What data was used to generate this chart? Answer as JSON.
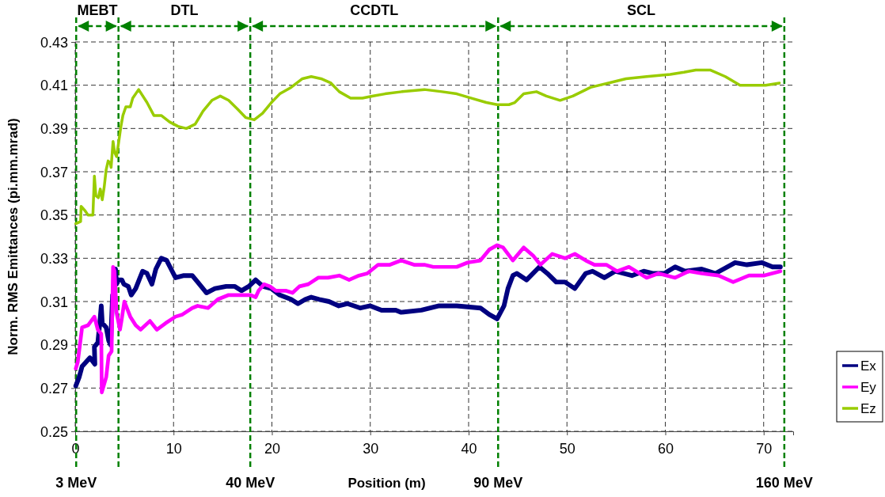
{
  "chart_data": {
    "type": "line",
    "xlabel": "Position (m)",
    "ylabel": "Norm. RMS Emittances (pi.mm.mrad)",
    "xlim": [
      0,
      73
    ],
    "xticks": [
      0,
      10,
      20,
      30,
      40,
      50,
      60,
      70
    ],
    "ylim": [
      0.25,
      0.43
    ],
    "yticks": [
      {
        "value": 0.25,
        "label": "0.25"
      },
      {
        "value": 0.27,
        "label": "0.27"
      },
      {
        "value": 0.29,
        "label": "0.29"
      },
      {
        "value": 0.31,
        "label": "0.31"
      },
      {
        "value": 0.33,
        "label": "0.33"
      },
      {
        "value": 0.35,
        "label": "0.35"
      },
      {
        "value": 0.37,
        "label": "0.37"
      },
      {
        "value": 0.39,
        "label": "0.39"
      },
      {
        "value": 0.41,
        "label": "0.41"
      },
      {
        "value": 0.43,
        "label": "0.43"
      }
    ],
    "grid": true,
    "legend": "right",
    "line_style": "solid",
    "marker": "none",
    "series": [
      {
        "name": "Ex",
        "color": "#000080",
        "x": [
          0.06,
          0.4,
          0.7,
          1.1,
          1.5,
          2.0,
          1.95,
          2.3,
          2.5,
          2.65,
          2.75,
          3.15,
          3.4,
          3.6,
          3.8,
          3.95,
          4.1,
          4.2,
          4.4,
          4.75,
          4.95,
          5.4,
          5.7,
          6.15,
          6.5,
          6.85,
          7.3,
          7.8,
          8.2,
          8.75,
          9.3,
          9.75,
          10.2,
          11.05,
          11.9,
          12.45,
          13.35,
          14.2,
          15.35,
          16.2,
          16.9,
          17.65,
          18.35,
          19.1,
          19.95,
          20.8,
          21.95,
          22.65,
          23.4,
          24.0,
          24.8,
          25.8,
          26.8,
          27.7,
          29.0,
          30.0,
          31.15,
          32.6,
          33.15,
          35.2,
          37.0,
          38.8,
          41.2,
          42.1,
          42.9,
          43.6,
          44.0,
          44.5,
          44.9,
          45.9,
          47.2,
          48.0,
          48.9,
          49.8,
          50.8,
          51.9,
          52.6,
          53.8,
          54.9,
          56.6,
          57.8,
          58.7,
          59.9,
          61.0,
          62.0,
          63.7,
          65.1,
          67.1,
          68.3,
          69.8,
          70.9,
          71.7
        ],
        "values": [
          0.271,
          0.275,
          0.28,
          0.282,
          0.284,
          0.281,
          0.289,
          0.291,
          0.3,
          0.308,
          0.3,
          0.298,
          0.292,
          0.29,
          0.313,
          0.314,
          0.325,
          0.318,
          0.32,
          0.32,
          0.318,
          0.317,
          0.313,
          0.316,
          0.32,
          0.324,
          0.323,
          0.318,
          0.325,
          0.33,
          0.329,
          0.325,
          0.321,
          0.322,
          0.322,
          0.319,
          0.314,
          0.316,
          0.317,
          0.317,
          0.315,
          0.317,
          0.32,
          0.317,
          0.316,
          0.313,
          0.311,
          0.309,
          0.311,
          0.312,
          0.311,
          0.31,
          0.308,
          0.309,
          0.307,
          0.308,
          0.306,
          0.306,
          0.305,
          0.306,
          0.308,
          0.308,
          0.307,
          0.304,
          0.302,
          0.308,
          0.316,
          0.322,
          0.323,
          0.32,
          0.326,
          0.323,
          0.319,
          0.319,
          0.316,
          0.323,
          0.324,
          0.321,
          0.324,
          0.322,
          0.324,
          0.323,
          0.323,
          0.326,
          0.324,
          0.325,
          0.323,
          0.328,
          0.327,
          0.328,
          0.326,
          0.326
        ]
      },
      {
        "name": "Ey",
        "color": "#ff00ff",
        "x": [
          0.06,
          0.26,
          0.7,
          1.3,
          1.95,
          2.3,
          2.65,
          2.7,
          3.15,
          3.4,
          3.7,
          3.85,
          4.0,
          4.2,
          4.55,
          4.7,
          5.0,
          5.6,
          6.15,
          6.65,
          7.6,
          8.3,
          9.2,
          10.2,
          10.9,
          11.9,
          12.45,
          13.5,
          14.5,
          15.6,
          16.8,
          17.8,
          18.35,
          18.65,
          19.2,
          19.8,
          20.4,
          21.4,
          22.1,
          22.8,
          23.7,
          24.7,
          25.7,
          26.85,
          27.85,
          28.85,
          29.7,
          30.8,
          32.0,
          33.15,
          34.45,
          35.5,
          36.4,
          38.8,
          39.9,
          41.2,
          42.1,
          42.9,
          43.5,
          44.5,
          45.6,
          46.6,
          47.3,
          48.5,
          49.8,
          50.8,
          51.9,
          52.8,
          54.0,
          55.1,
          56.3,
          58.1,
          59.3,
          61.0,
          62.4,
          63.7,
          65.4,
          66.9,
          68.5,
          70.0,
          71.7
        ],
        "values": [
          0.279,
          0.282,
          0.298,
          0.299,
          0.303,
          0.297,
          0.295,
          0.268,
          0.275,
          0.285,
          0.287,
          0.326,
          0.324,
          0.305,
          0.297,
          0.301,
          0.31,
          0.303,
          0.299,
          0.297,
          0.301,
          0.297,
          0.3,
          0.303,
          0.304,
          0.307,
          0.308,
          0.307,
          0.311,
          0.313,
          0.313,
          0.313,
          0.312,
          0.315,
          0.318,
          0.317,
          0.315,
          0.315,
          0.314,
          0.317,
          0.318,
          0.321,
          0.321,
          0.322,
          0.32,
          0.322,
          0.323,
          0.327,
          0.327,
          0.329,
          0.327,
          0.327,
          0.326,
          0.326,
          0.328,
          0.329,
          0.334,
          0.336,
          0.335,
          0.329,
          0.335,
          0.331,
          0.327,
          0.332,
          0.33,
          0.332,
          0.329,
          0.327,
          0.327,
          0.324,
          0.326,
          0.321,
          0.323,
          0.321,
          0.324,
          0.323,
          0.322,
          0.319,
          0.322,
          0.322,
          0.324
        ]
      },
      {
        "name": "Ez",
        "color": "#99cc00",
        "x": [
          0.06,
          0.55,
          0.6,
          1.0,
          1.3,
          1.8,
          1.95,
          2.1,
          2.35,
          2.55,
          2.75,
          2.95,
          3.15,
          3.35,
          3.55,
          3.65,
          3.85,
          4.0,
          4.2,
          4.4,
          4.65,
          4.85,
          5.15,
          5.6,
          5.85,
          6.45,
          7.3,
          8.0,
          8.75,
          9.6,
          10.45,
          11.3,
          12.2,
          13.0,
          13.9,
          14.75,
          15.6,
          16.5,
          17.35,
          18.2,
          19.05,
          19.95,
          20.8,
          21.95,
          23.1,
          24.0,
          25.0,
          26.0,
          26.85,
          28.0,
          29.2,
          30.3,
          31.5,
          33.2,
          35.5,
          37.3,
          38.8,
          40.3,
          41.8,
          42.9,
          44.1,
          44.7,
          45.6,
          46.9,
          47.9,
          49.3,
          50.6,
          52.4,
          54.2,
          56.0,
          58.1,
          60.5,
          61.9,
          63.1,
          64.6,
          66.1,
          67.6,
          69.0,
          70.2,
          71.6
        ],
        "values": [
          0.346,
          0.347,
          0.354,
          0.352,
          0.35,
          0.35,
          0.368,
          0.359,
          0.358,
          0.362,
          0.357,
          0.363,
          0.371,
          0.375,
          0.374,
          0.372,
          0.384,
          0.379,
          0.377,
          0.383,
          0.391,
          0.396,
          0.4,
          0.4,
          0.404,
          0.408,
          0.402,
          0.396,
          0.396,
          0.393,
          0.391,
          0.39,
          0.392,
          0.398,
          0.403,
          0.405,
          0.403,
          0.399,
          0.395,
          0.394,
          0.397,
          0.402,
          0.406,
          0.409,
          0.413,
          0.414,
          0.413,
          0.411,
          0.407,
          0.404,
          0.404,
          0.405,
          0.406,
          0.407,
          0.408,
          0.407,
          0.406,
          0.404,
          0.402,
          0.401,
          0.401,
          0.402,
          0.406,
          0.407,
          0.405,
          0.403,
          0.405,
          0.409,
          0.411,
          0.413,
          0.414,
          0.415,
          0.416,
          0.417,
          0.417,
          0.414,
          0.41,
          0.41,
          0.41,
          0.411
        ]
      }
    ],
    "ref_lines": [
      {
        "axis": "x",
        "value": 0.1,
        "label": "3 MeV",
        "color": "#008000",
        "line_style": "dashed"
      },
      {
        "axis": "x",
        "value": 4.4,
        "label": null,
        "color": "#008000",
        "line_style": "dashed"
      },
      {
        "axis": "x",
        "value": 17.8,
        "label": "40 MeV",
        "color": "#008000",
        "line_style": "dashed"
      },
      {
        "axis": "x",
        "value": 43.0,
        "label": "90 MeV",
        "color": "#008000",
        "line_style": "dashed"
      },
      {
        "axis": "x",
        "value": 72.1,
        "label": "160 MeV",
        "color": "#008000",
        "line_style": "dashed"
      }
    ],
    "annotations": [
      "MEBT",
      "DTL",
      "CCDTL",
      "SCL"
    ]
  }
}
